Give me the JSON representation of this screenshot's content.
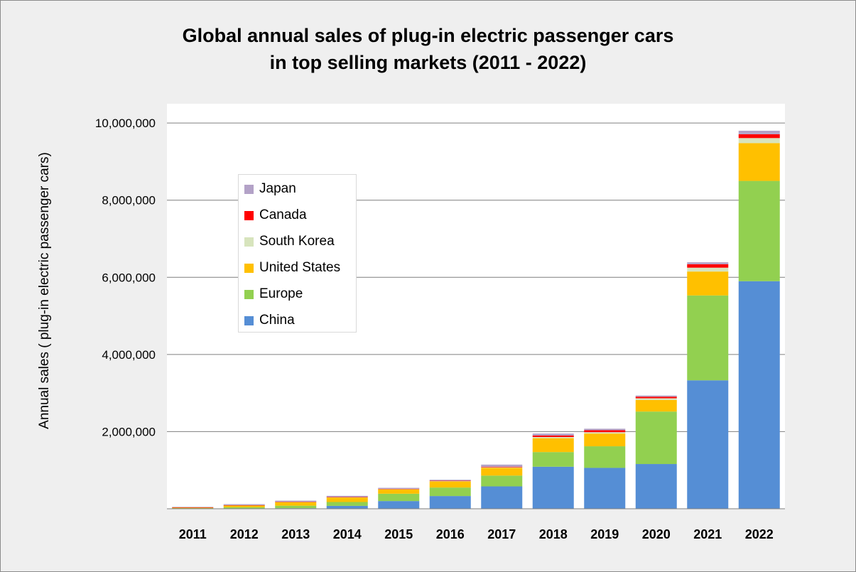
{
  "chart_data": {
    "type": "bar",
    "stacked": true,
    "title": [
      "Global annual sales of plug-in electric passenger cars",
      "in top selling markets (2011 - 2022)"
    ],
    "ylabel": "Annual sales ( plug-in electric passenger cars)",
    "xlabel": "",
    "ylim": [
      0,
      10500000
    ],
    "yticks": [
      0,
      2000000,
      4000000,
      6000000,
      8000000,
      10000000
    ],
    "ytick_labels": [
      "",
      "2,000,000",
      "4,000,000",
      "6,000,000",
      "8,000,000",
      "10,000,000"
    ],
    "grid": true,
    "legend_placement": "upper-left",
    "categories": [
      "2011",
      "2012",
      "2013",
      "2014",
      "2015",
      "2016",
      "2017",
      "2018",
      "2019",
      "2020",
      "2021",
      "2022"
    ],
    "series": [
      {
        "name": "China",
        "color": "#558ed5",
        "values": [
          5000,
          10000,
          15000,
          75000,
          200000,
          330000,
          580000,
          1090000,
          1060000,
          1160000,
          3330000,
          5900000
        ]
      },
      {
        "name": "Europe",
        "color": "#92d050",
        "values": [
          12000,
          30000,
          65000,
          100000,
          190000,
          220000,
          280000,
          380000,
          560000,
          1360000,
          2200000,
          2600000
        ]
      },
      {
        "name": "United States",
        "color": "#ffc000",
        "values": [
          18000,
          50000,
          95000,
          120000,
          115000,
          160000,
          200000,
          360000,
          330000,
          300000,
          620000,
          980000
        ]
      },
      {
        "name": "South Korea",
        "color": "#d7e4bd",
        "values": [
          1000,
          2000,
          3000,
          5000,
          6000,
          7000,
          15000,
          30000,
          35000,
          45000,
          100000,
          130000
        ]
      },
      {
        "name": "Canada",
        "color": "#ff0000",
        "values": [
          500,
          2000,
          3000,
          5000,
          7000,
          10000,
          15000,
          40000,
          50000,
          40000,
          90000,
          100000
        ]
      },
      {
        "name": "Japan",
        "color": "#b3a2c7",
        "values": [
          12000,
          25000,
          30000,
          30000,
          25000,
          25000,
          55000,
          50000,
          40000,
          30000,
          50000,
          90000
        ]
      }
    ]
  }
}
